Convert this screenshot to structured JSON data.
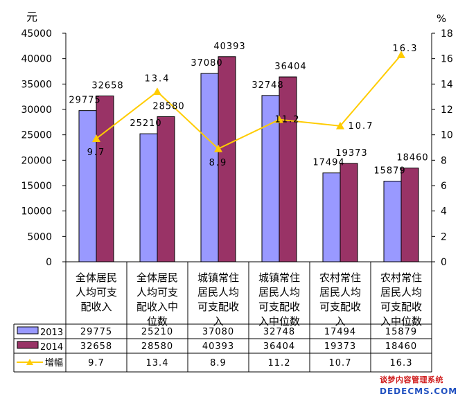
{
  "chart_data": {
    "type": "bar+line",
    "categories": [
      [
        "全体居民",
        "人均可支",
        "配收入"
      ],
      [
        "全体居民",
        "人均可支",
        "配收入中",
        "位数"
      ],
      [
        "城镇常住",
        "居民人均",
        "可支配收",
        "入"
      ],
      [
        "城镇常住",
        "居民人均",
        "可支配收",
        "入中位数"
      ],
      [
        "农村常住",
        "居民人均",
        "可支配收",
        "入"
      ],
      [
        "农村常住",
        "居民人均",
        "可支配收",
        "入中位数"
      ]
    ],
    "series": [
      {
        "name": "2013",
        "type": "bar",
        "axis": "left",
        "values": [
          29775,
          25210,
          37080,
          32748,
          17494,
          15879
        ],
        "labels": [
          "29775",
          "25210",
          "37080",
          "32748",
          "17494",
          "15879"
        ],
        "color": "#9999ff"
      },
      {
        "name": "2014",
        "type": "bar",
        "axis": "left",
        "values": [
          32658,
          28580,
          40393,
          36404,
          19373,
          18460
        ],
        "labels": [
          "32658",
          "28580",
          "40393",
          "36404",
          "19373",
          "18460"
        ],
        "color": "#993366"
      },
      {
        "name": "增幅",
        "type": "line",
        "axis": "right",
        "values": [
          9.7,
          13.4,
          8.9,
          11.2,
          10.7,
          16.3
        ],
        "labels": [
          "9.7",
          "13.4",
          "8.9",
          "11.2",
          "10.7",
          "16.3"
        ],
        "color": "#ffcc00"
      }
    ],
    "ylabel_left": "元",
    "ylabel_right": "%",
    "ylim_left": [
      0,
      45000
    ],
    "ylim_right": [
      0,
      18
    ],
    "yticks_left": [
      "0",
      "5000",
      "10000",
      "15000",
      "20000",
      "25000",
      "30000",
      "35000",
      "40000",
      "45000"
    ],
    "yticks_right": [
      "0",
      "2",
      "4",
      "6",
      "8",
      "10",
      "12",
      "14",
      "16",
      "18"
    ],
    "grid": false,
    "legend": "data-table-below"
  },
  "watermark": {
    "line1": "谈梦内容管理系统",
    "line2": "DEDECMS.COM"
  }
}
